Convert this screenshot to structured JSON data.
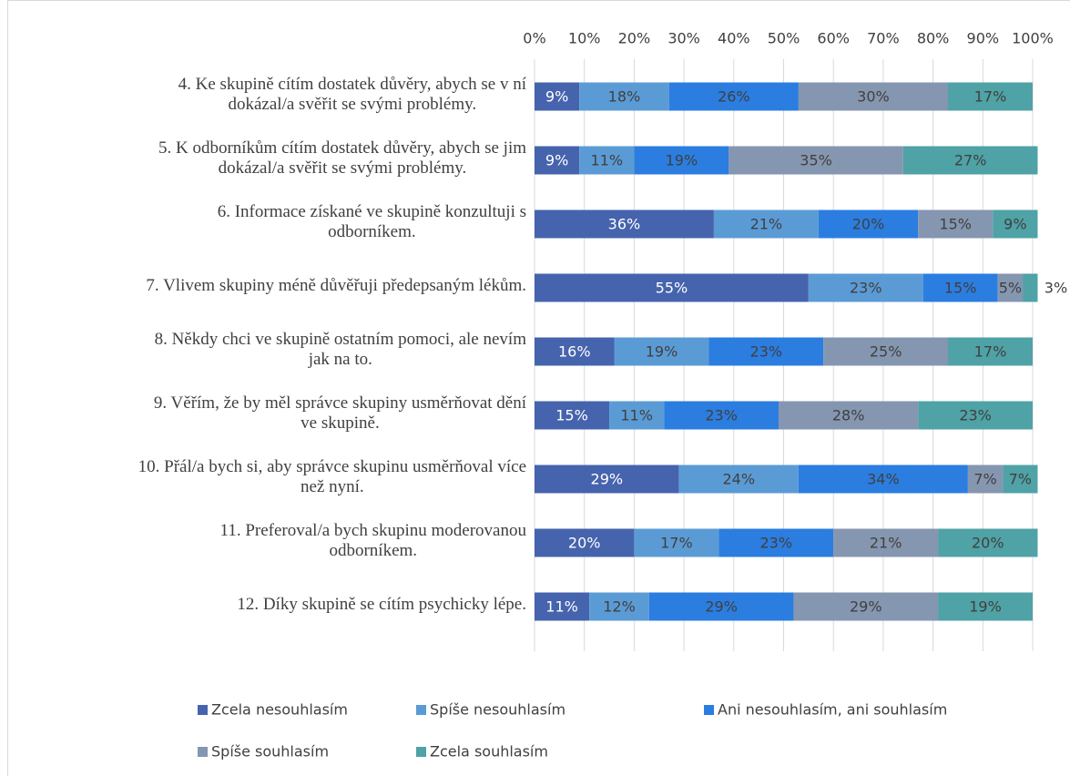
{
  "chart_data": {
    "type": "stacked_bar_horizontal",
    "categories": [
      "4. Ke skupině cítím dostatek důvěry, abych se v ní\ndokázal/a svěřit se svými problémy.",
      "5. K odborníkům cítím dostatek důvěry, abych se jim\ndokázal/a svěřit se svými problémy.",
      "6. Informace získané ve skupině konzultuji s\nodborníkem.",
      "7. Vlivem skupiny méně důvěřuji předepsaným lékům.",
      "8. Někdy chci ve skupině ostatním pomoci, ale nevím\njak na to.",
      "9. Věřím, že by měl správce skupiny usměrňovat dění\nve skupině.",
      "10. Přál/a bych si, aby správce skupinu usměrňoval více\nnež nyní.",
      "11. Preferoval/a bych skupinu moderovanou\nodborníkem.",
      "12. Díky skupině se cítím psychicky lépe."
    ],
    "series": [
      {
        "name": "Zcela nesouhlasím",
        "color": "#4664ad",
        "values": [
          9,
          9,
          36,
          55,
          16,
          15,
          29,
          20,
          11
        ],
        "value_labels": [
          "9%",
          "9%",
          "36%",
          "55%",
          "16%",
          "15%",
          "29%",
          "20%",
          "11%"
        ]
      },
      {
        "name": "Spíše nesouhlasím",
        "color": "#5b9bd5",
        "values": [
          18,
          11,
          21,
          23,
          19,
          11,
          24,
          17,
          12
        ],
        "value_labels": [
          "18%",
          "11%",
          "21%",
          "23%",
          "19%",
          "11%",
          "24%",
          "17%",
          "12%"
        ]
      },
      {
        "name": "Ani nesouhlasím, ani souhlasím",
        "color": "#2b7de0",
        "values": [
          26,
          19,
          20,
          15,
          23,
          23,
          34,
          23,
          29
        ],
        "value_labels": [
          "26%",
          "19%",
          "20%",
          "15%",
          "23%",
          "23%",
          "34%",
          "23%",
          "29%"
        ]
      },
      {
        "name": "Spíše souhlasím",
        "color": "#8596b0",
        "values": [
          30,
          35,
          15,
          5,
          25,
          28,
          7,
          21,
          29
        ],
        "value_labels": [
          "30%",
          "35%",
          "15%",
          "5%",
          "25%",
          "28%",
          "7%",
          "21%",
          "29%"
        ]
      },
      {
        "name": "Zcela souhlasím",
        "color": "#4fa2a6",
        "values": [
          17,
          27,
          9,
          3,
          17,
          23,
          7,
          20,
          19
        ],
        "value_labels": [
          "17%",
          "27%",
          "9%",
          "3%",
          "17%",
          "23%",
          "7%",
          "20%",
          "19%"
        ]
      }
    ],
    "xlim": [
      0,
      100
    ],
    "xticks": [
      {
        "value": 0,
        "label": "0%"
      },
      {
        "value": 10,
        "label": "10%"
      },
      {
        "value": 20,
        "label": "20%"
      },
      {
        "value": 30,
        "label": "30%"
      },
      {
        "value": 40,
        "label": "40%"
      },
      {
        "value": 50,
        "label": "50%"
      },
      {
        "value": 60,
        "label": "60%"
      },
      {
        "value": 70,
        "label": "70%"
      },
      {
        "value": 80,
        "label": "80%"
      },
      {
        "value": 90,
        "label": "90%"
      },
      {
        "value": 100,
        "label": "100%"
      }
    ],
    "grid": true,
    "legend": "bottom"
  }
}
